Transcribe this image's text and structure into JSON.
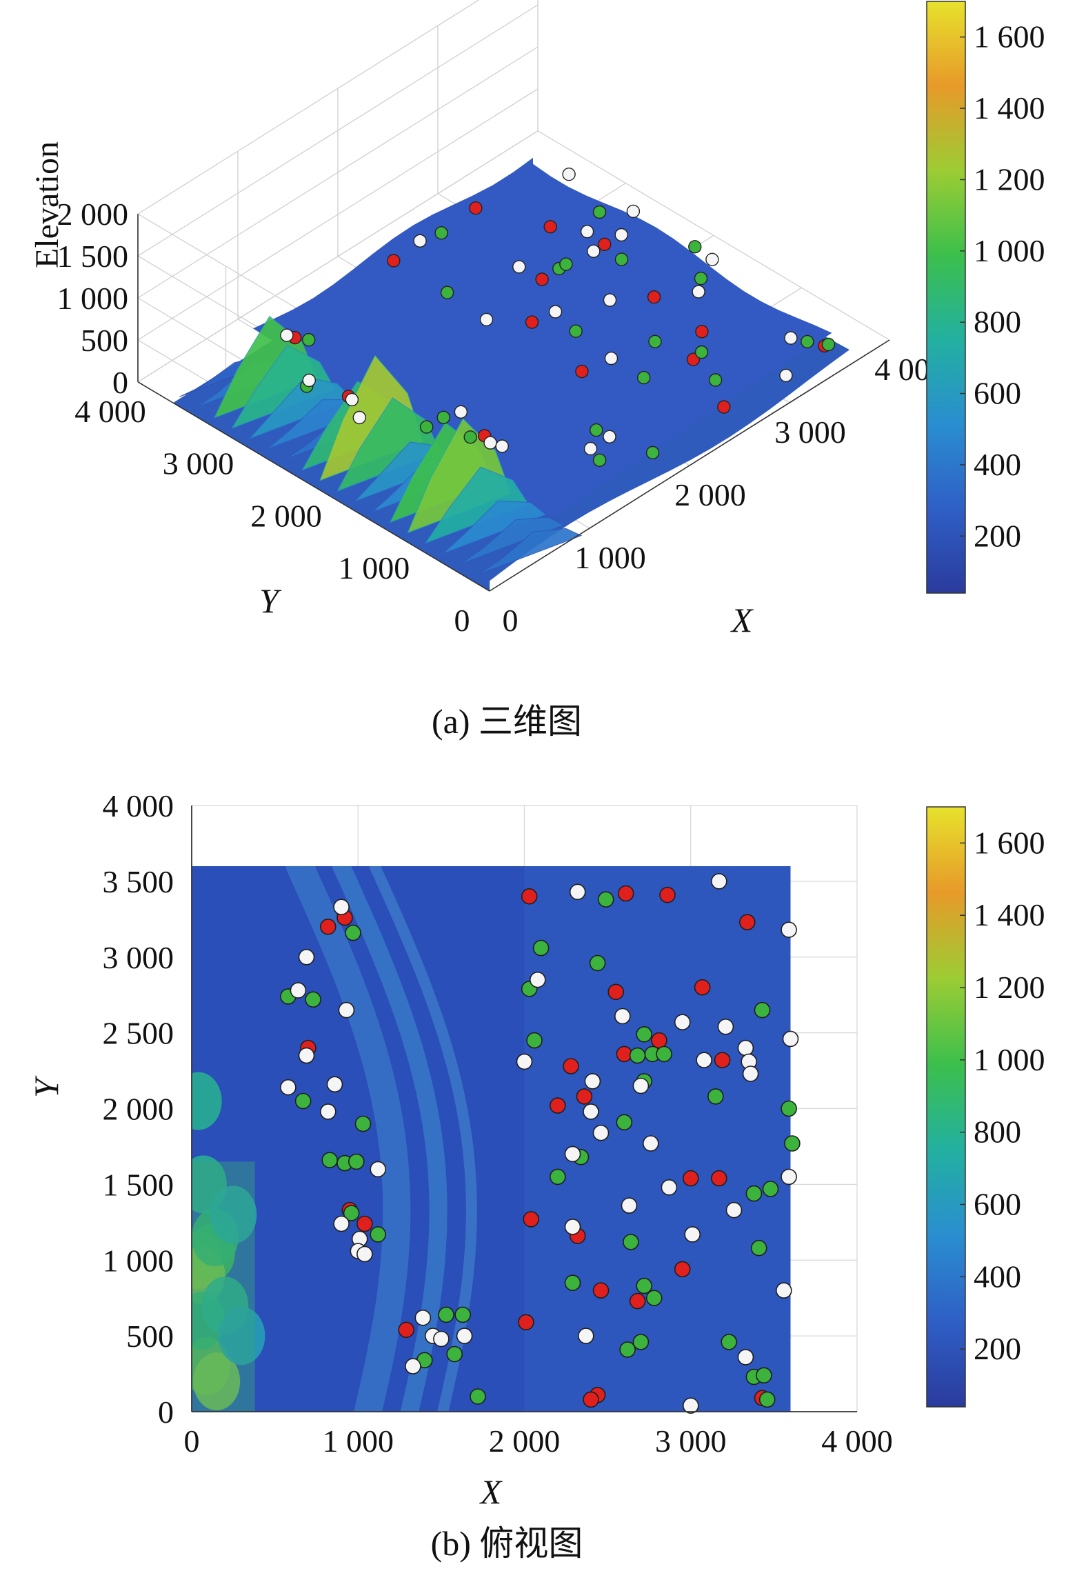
{
  "figure": {
    "caption_a": "(a) 三维图",
    "caption_b": "(b) 俯视图"
  },
  "colors": {
    "red_points": "#e0201d",
    "green_points": "#3cb33c",
    "white_points": "#f5f5f5",
    "colormap": [
      "#2b3b9c",
      "#2f5fc6",
      "#2a8ed0",
      "#23b0a0",
      "#3cbf4c",
      "#9ccc34",
      "#e79a2a",
      "#e7e22d"
    ]
  },
  "chart_data": [
    {
      "type": "surface3d",
      "title": "",
      "xlabel": "X",
      "ylabel": "Y",
      "zlabel": "Elevation",
      "xlim": [
        0,
        4000
      ],
      "ylim": [
        0,
        4000
      ],
      "zlim": [
        0,
        2000
      ],
      "xticks": [
        "0",
        "1 000",
        "2 000",
        "3 000",
        "4 000"
      ],
      "yticks": [
        "0",
        "1 000",
        "2 000",
        "3 000",
        "4 000"
      ],
      "zticks": [
        "0",
        "500",
        "1 000",
        "1 500",
        "2 000"
      ],
      "grid": true,
      "colorbar": {
        "range": [
          40,
          1700
        ],
        "ticks": [
          "200",
          "400",
          "600",
          "800",
          "1 000",
          "1 200",
          "1 400",
          "1 600"
        ],
        "tick_values": [
          200,
          400,
          600,
          800,
          1000,
          1200,
          1400,
          1600
        ]
      },
      "ridge_profile": {
        "description_values_y": [
          3500,
          3300,
          3100,
          2900,
          2700,
          2500,
          2300,
          2100,
          1900,
          1700,
          1500,
          1300,
          1100,
          900,
          700,
          500,
          300,
          100
        ],
        "peak_elevation": [
          200,
          320,
          1000,
          780,
          520,
          380,
          300,
          850,
          1280,
          900,
          500,
          420,
          980,
          1150,
          700,
          420,
          320,
          300
        ]
      }
    },
    {
      "type": "heatmap_scatter",
      "title": "",
      "xlabel": "X",
      "ylabel": "Y",
      "xlim": [
        0,
        4000
      ],
      "ylim": [
        0,
        4000
      ],
      "xticks": [
        "0",
        "1 000",
        "2 000",
        "3 000",
        "4 000"
      ],
      "yticks": [
        "0",
        "500",
        "1 000",
        "1 500",
        "2 000",
        "2 500",
        "3 000",
        "3 500",
        "4 000"
      ],
      "grid": true,
      "map_extent": {
        "x": [
          0,
          3600
        ],
        "y": [
          0,
          3600
        ]
      },
      "colorbar": {
        "range": [
          40,
          1700
        ],
        "ticks": [
          "200",
          "400",
          "600",
          "800",
          "1 000",
          "1 200",
          "1 400",
          "1 600"
        ],
        "tick_values": [
          200,
          400,
          600,
          800,
          1000,
          1200,
          1400,
          1600
        ]
      },
      "series": [
        {
          "color": "red",
          "points": [
            [
              920,
              3260
            ],
            [
              820,
              3200
            ],
            [
              700,
              2400
            ],
            [
              950,
              1330
            ],
            [
              1040,
              1240
            ],
            [
              1290,
              540
            ],
            [
              2030,
              3400
            ],
            [
              2610,
              3420
            ],
            [
              2860,
              3410
            ],
            [
              3340,
              3230
            ],
            [
              3070,
              2800
            ],
            [
              2550,
              2770
            ],
            [
              2600,
              2360
            ],
            [
              2810,
              2450
            ],
            [
              3190,
              2320
            ],
            [
              2280,
              2280
            ],
            [
              2200,
              2020
            ],
            [
              2360,
              2080
            ],
            [
              3000,
              1540
            ],
            [
              3170,
              1540
            ],
            [
              2040,
              1270
            ],
            [
              2320,
              1160
            ],
            [
              2950,
              940
            ],
            [
              2460,
              800
            ],
            [
              2680,
              730
            ],
            [
              2010,
              590
            ],
            [
              2440,
              110
            ],
            [
              2400,
              80
            ],
            [
              3430,
              90
            ]
          ]
        },
        {
          "color": "green",
          "points": [
            [
              970,
              3160
            ],
            [
              730,
              2720
            ],
            [
              580,
              2740
            ],
            [
              670,
              2050
            ],
            [
              830,
              1660
            ],
            [
              920,
              1640
            ],
            [
              990,
              1650
            ],
            [
              1030,
              1900
            ],
            [
              960,
              1310
            ],
            [
              1120,
              1170
            ],
            [
              1400,
              340
            ],
            [
              1530,
              640
            ],
            [
              1630,
              640
            ],
            [
              1580,
              380
            ],
            [
              1720,
              100
            ],
            [
              2100,
              3060
            ],
            [
              2030,
              2790
            ],
            [
              2440,
              2960
            ],
            [
              2490,
              3380
            ],
            [
              2060,
              2450
            ],
            [
              3430,
              2650
            ],
            [
              2720,
              2490
            ],
            [
              2770,
              2360
            ],
            [
              2680,
              2350
            ],
            [
              2840,
              2360
            ],
            [
              2720,
              2180
            ],
            [
              3150,
              2080
            ],
            [
              3590,
              2000
            ],
            [
              3610,
              1770
            ],
            [
              2600,
              1910
            ],
            [
              2340,
              1680
            ],
            [
              2200,
              1550
            ],
            [
              3380,
              1440
            ],
            [
              3480,
              1470
            ],
            [
              2640,
              1120
            ],
            [
              3410,
              1080
            ],
            [
              2290,
              850
            ],
            [
              2720,
              830
            ],
            [
              2780,
              750
            ],
            [
              2700,
              460
            ],
            [
              2620,
              410
            ],
            [
              3230,
              460
            ],
            [
              3380,
              230
            ],
            [
              3440,
              240
            ],
            [
              3460,
              80
            ]
          ]
        },
        {
          "color": "white",
          "points": [
            [
              900,
              3330
            ],
            [
              690,
              3000
            ],
            [
              640,
              2780
            ],
            [
              930,
              2650
            ],
            [
              690,
              2350
            ],
            [
              860,
              2160
            ],
            [
              580,
              2140
            ],
            [
              820,
              1980
            ],
            [
              1120,
              1600
            ],
            [
              900,
              1240
            ],
            [
              1010,
              1140
            ],
            [
              1000,
              1060
            ],
            [
              1040,
              1040
            ],
            [
              1390,
              620
            ],
            [
              1450,
              500
            ],
            [
              1500,
              480
            ],
            [
              1640,
              500
            ],
            [
              1330,
              300
            ],
            [
              2320,
              3430
            ],
            [
              2080,
              2850
            ],
            [
              2000,
              2310
            ],
            [
              2410,
              2180
            ],
            [
              2400,
              1980
            ],
            [
              2460,
              1840
            ],
            [
              2590,
              2610
            ],
            [
              2950,
              2570
            ],
            [
              3210,
              2540
            ],
            [
              3330,
              2400
            ],
            [
              3350,
              2310
            ],
            [
              3360,
              2230
            ],
            [
              3600,
              2460
            ],
            [
              3170,
              3500
            ],
            [
              3590,
              3180
            ],
            [
              2700,
              2150
            ],
            [
              2760,
              1770
            ],
            [
              2870,
              1480
            ],
            [
              3260,
              1330
            ],
            [
              2630,
              1360
            ],
            [
              2290,
              1220
            ],
            [
              3010,
              1170
            ],
            [
              3590,
              1550
            ],
            [
              3560,
              800
            ],
            [
              3330,
              360
            ],
            [
              2370,
              500
            ],
            [
              3000,
              40
            ],
            [
              2290,
              1700
            ],
            [
              3080,
              2320
            ]
          ]
        }
      ]
    }
  ]
}
